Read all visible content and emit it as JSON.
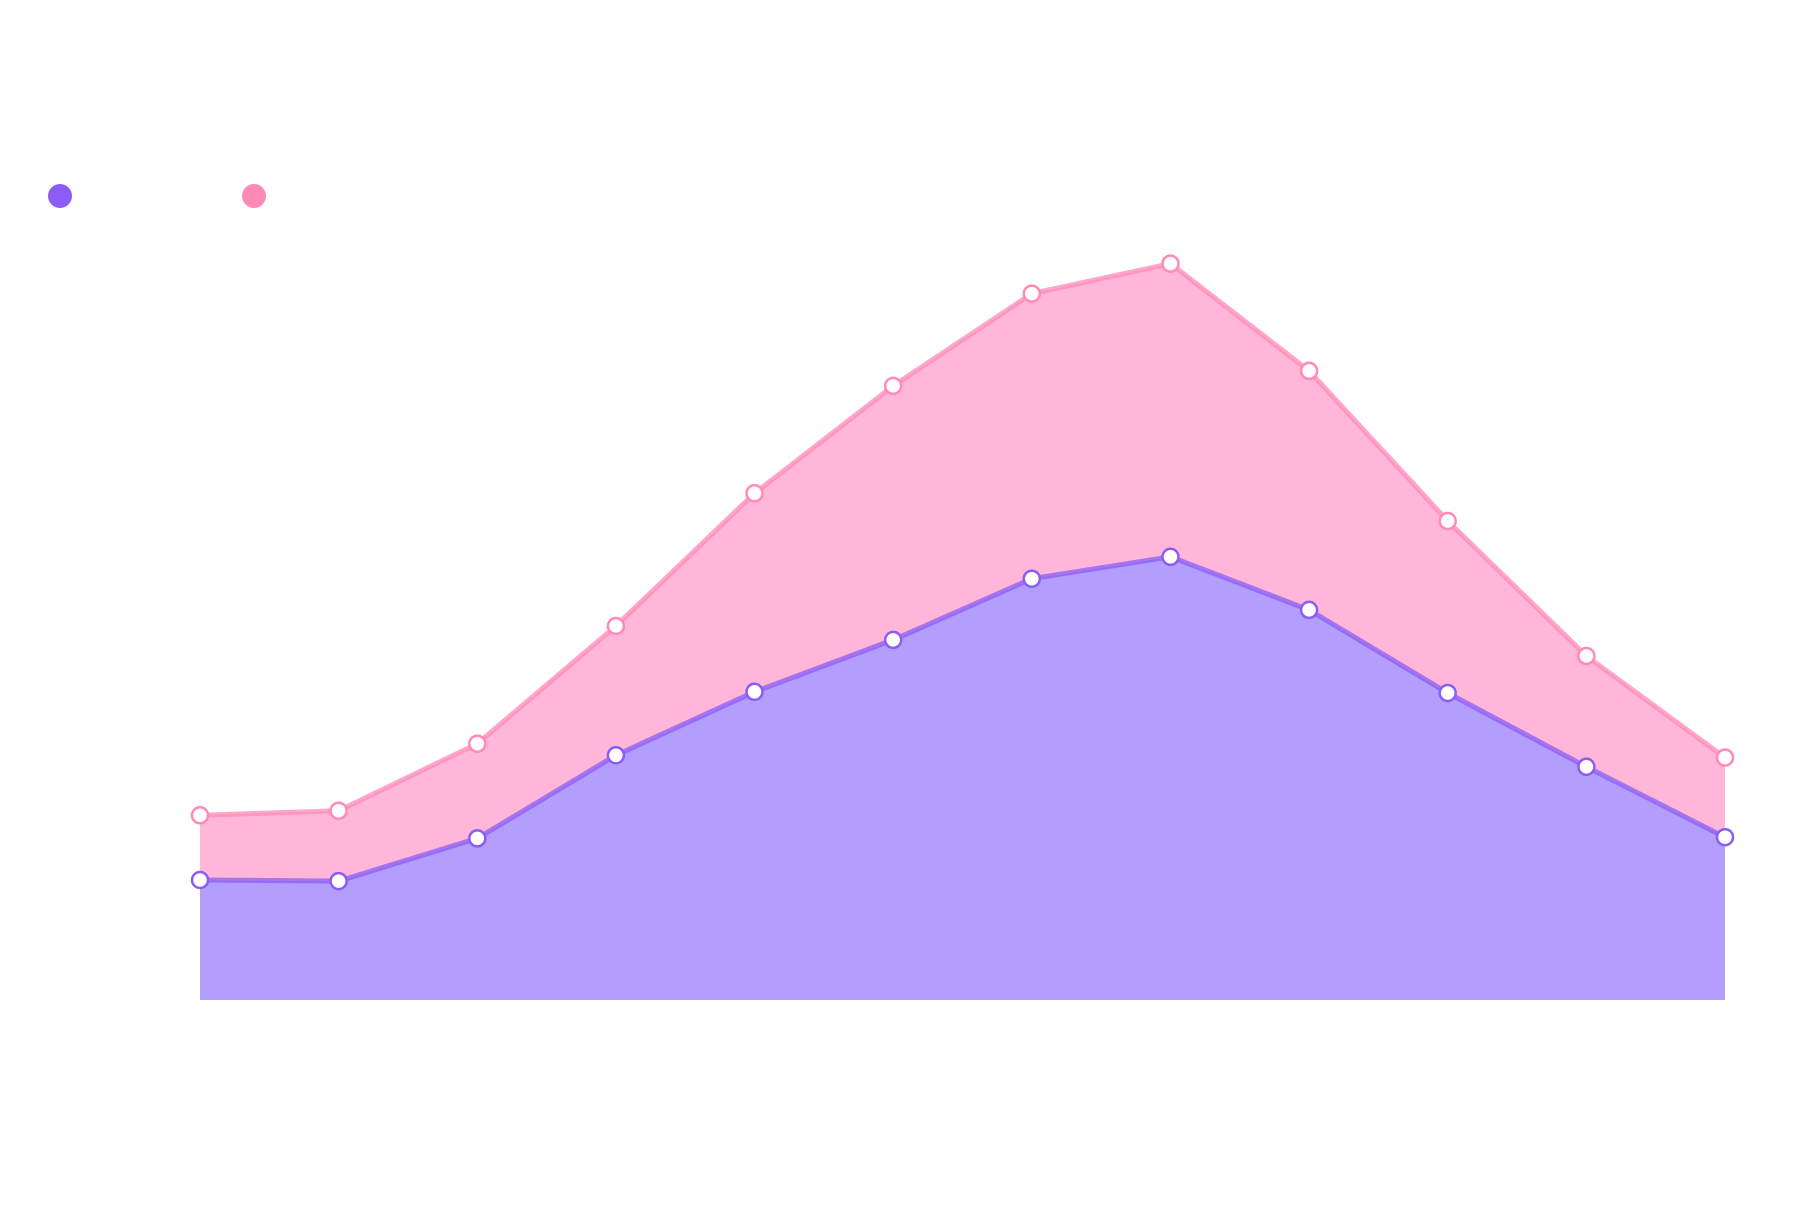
{
  "chart_data": {
    "type": "area",
    "stacked": true,
    "x": [
      1,
      2,
      3,
      4,
      5,
      6,
      7,
      8,
      9,
      10,
      11,
      12
    ],
    "series": [
      {
        "name": "",
        "color": "#8b5cf6",
        "fill": "#b39dfd",
        "values": [
          10.4,
          10.3,
          14.0,
          21.2,
          26.7,
          31.2,
          36.5,
          38.4,
          33.8,
          26.6,
          20.2,
          14.1
        ]
      },
      {
        "name": "",
        "color": "#ff8ab8",
        "fill": "#ffb6d8",
        "values": [
          5.6,
          6.1,
          8.2,
          11.2,
          17.2,
          22.0,
          24.7,
          25.4,
          20.7,
          14.9,
          9.6,
          6.9
        ]
      }
    ],
    "ylim": [
      0,
      70
    ],
    "grid": false,
    "legend_position": "top-left",
    "title": "",
    "xlabel": "",
    "ylabel": ""
  }
}
